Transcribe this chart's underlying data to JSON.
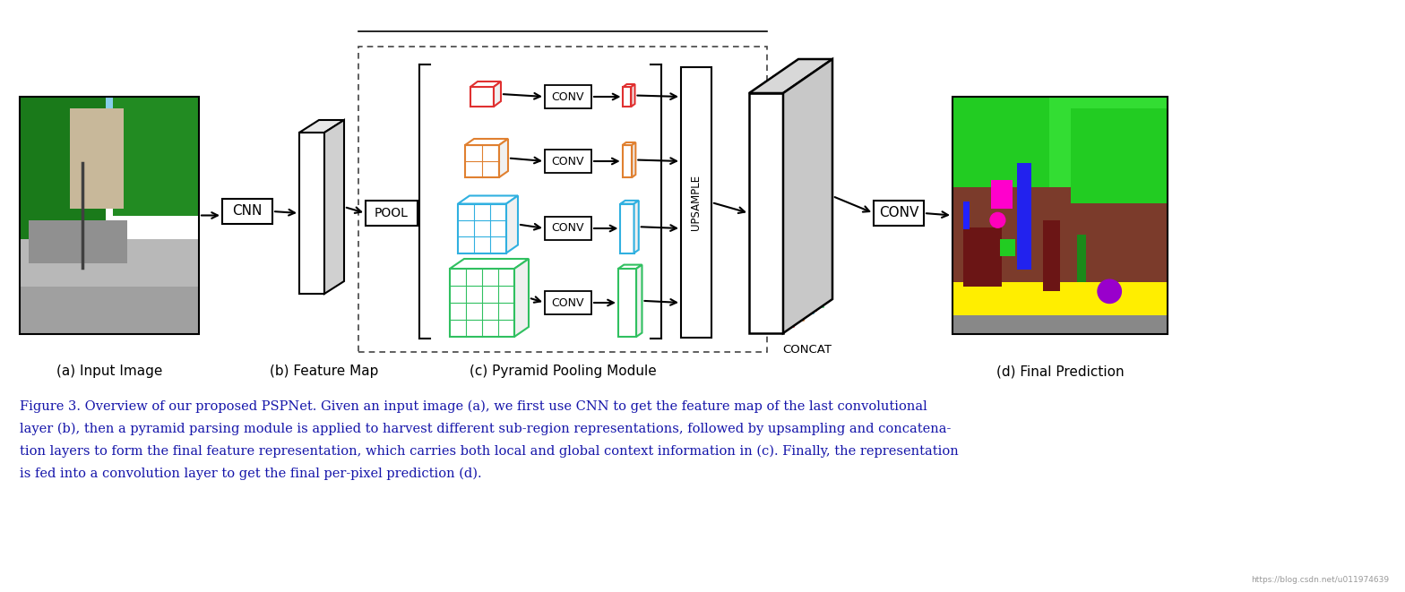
{
  "bg_color": "#ffffff",
  "caption_lines": [
    "Figure 3. Overview of our proposed PSPNet. Given an input image (a), we first use CNN to get the feature map of the last convolutional",
    "layer (b), then a pyramid parsing module is applied to harvest different sub-region representations, followed by upsampling and concatena-",
    "tion layers to form the final feature representation, which carries both local and global context information in (c). Finally, the representation",
    "is fed into a convolution layer to get the final per-pixel prediction (d)."
  ],
  "label_a": "(a) Input Image",
  "label_b": "(b) Feature Map",
  "label_c": "(c) Pyramid Pooling Module",
  "label_d": "(d) Final Prediction",
  "pool_colors": [
    "#e03030",
    "#e08030",
    "#30b0e0",
    "#30c060"
  ],
  "watermark": "https://blog.csdn.net/u011974639",
  "figw": 15.68,
  "figh": 6.61,
  "dpi": 100
}
